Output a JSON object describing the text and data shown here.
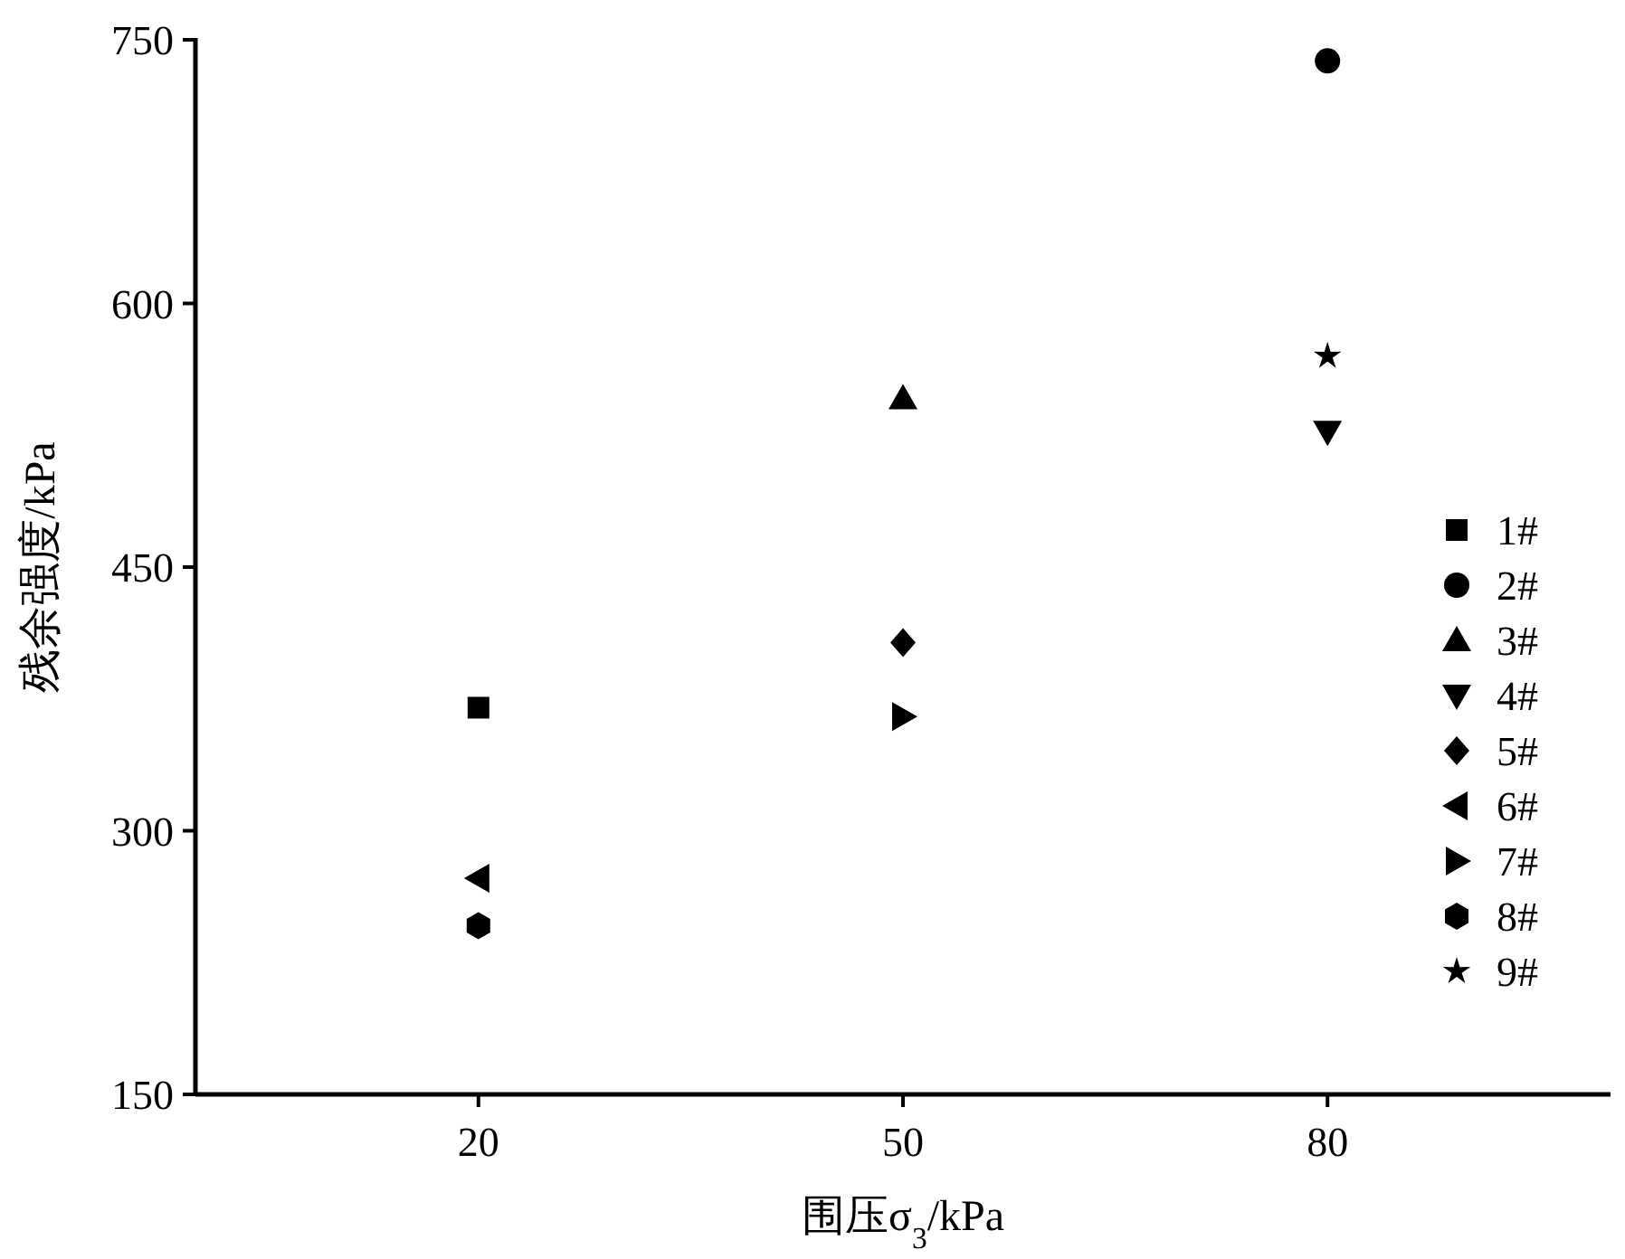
{
  "chart_data": {
    "type": "scatter",
    "xlabel": "围压σ$_{3}$/kPa",
    "ylabel": "残余强度/kPa",
    "xlim": [
      0,
      100
    ],
    "xticks": [
      20,
      50,
      80
    ],
    "ylim": [
      150,
      750
    ],
    "yticks": [
      150,
      300,
      450,
      600,
      750
    ],
    "grid": false,
    "legend": "right",
    "series": [
      {
        "name": "1#",
        "color": "#000000",
        "marker": "square",
        "x": [
          20
        ],
        "values": [
          370
        ]
      },
      {
        "name": "2#",
        "color": "#000000",
        "marker": "circle",
        "x": [
          80
        ],
        "values": [
          738
        ]
      },
      {
        "name": "3#",
        "color": "#000000",
        "marker": "triangle",
        "x": [
          50
        ],
        "values": [
          546
        ]
      },
      {
        "name": "4#",
        "color": "#000000",
        "marker": "triangle-down",
        "x": [
          80
        ],
        "values": [
          527
        ]
      },
      {
        "name": "5#",
        "color": "#000000",
        "marker": "diamond",
        "x": [
          50
        ],
        "values": [
          407
        ]
      },
      {
        "name": "6#",
        "color": "#000000",
        "marker": "triangle-left",
        "x": [
          20
        ],
        "values": [
          273
        ]
      },
      {
        "name": "7#",
        "color": "#000000",
        "marker": "triangle-right",
        "x": [
          50
        ],
        "values": [
          365
        ]
      },
      {
        "name": "8#",
        "color": "#000000",
        "x": [
          20
        ],
        "values": [
          246
        ]
      },
      {
        "name": "9#",
        "color": "#000000",
        "marker": "star",
        "x": [
          80
        ],
        "values": [
          570
        ]
      }
    ]
  }
}
